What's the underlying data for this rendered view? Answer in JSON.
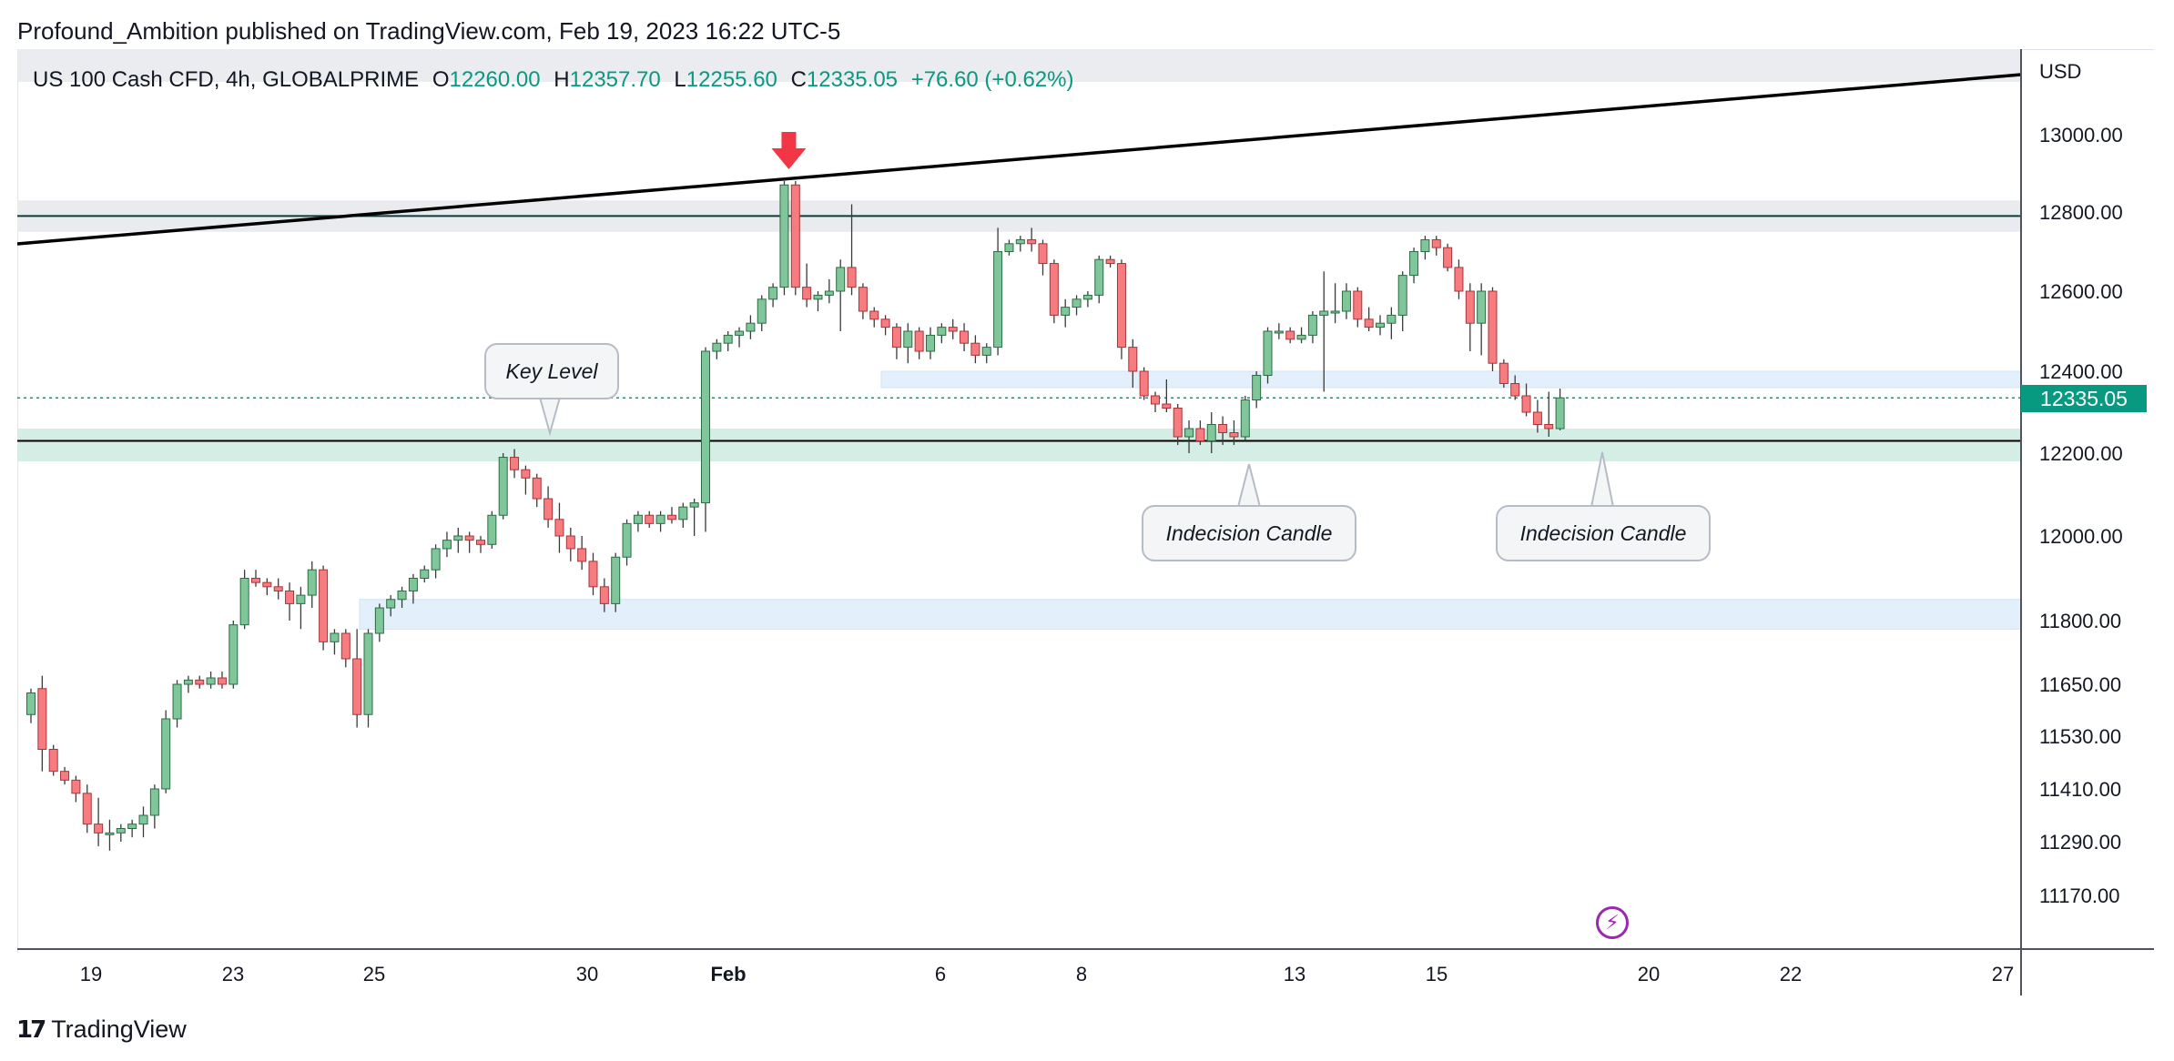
{
  "header": {
    "published_line": "Profound_Ambition published on TradingView.com, Feb 19, 2023 16:22 UTC-5"
  },
  "legend": {
    "symbol": "US 100 Cash CFD, 4h, GLOBALPRIME",
    "open_label": "O",
    "open": "12260.00",
    "high_label": "H",
    "high": "12357.70",
    "low_label": "L",
    "low": "12255.60",
    "close_label": "C",
    "close": "12335.05",
    "change": "+76.60 (+0.62%)"
  },
  "axis": {
    "currency": "USD",
    "last_price": "12335.05"
  },
  "annotations": {
    "key_level": "Key Level",
    "indecision_1": "Indecision Candle",
    "indecision_2": "Indecision Candle"
  },
  "footer": {
    "brand": "TradingView"
  },
  "colors": {
    "up": "#089981",
    "down": "#f23645",
    "up_fill": "#7fc79a",
    "down_fill": "#f77c80",
    "zone_green": "#d4eee6",
    "zone_blue": "#e3f0fb",
    "zone_gray": "#e9ebef",
    "marker": "#f23645"
  },
  "chart_data": {
    "type": "candlestick",
    "timeframe": "4h",
    "currency": "USD",
    "y_ticks": [
      13000,
      12800,
      12600,
      12400,
      12200,
      12000,
      11800,
      11650,
      11530,
      11410,
      11290,
      11170
    ],
    "x_ticks": [
      "19",
      "23",
      "25",
      "30",
      "Feb",
      "6",
      "8",
      "13",
      "15",
      "20",
      "22",
      "27"
    ],
    "last_price": 12335.05,
    "ohlc": {
      "open": 12260.0,
      "high": 12357.7,
      "low": 12255.6,
      "close": 12335.05,
      "change": 76.6,
      "change_pct": 0.62
    },
    "candles": [
      [
        11580,
        11640,
        11560,
        11630
      ],
      [
        11640,
        11670,
        11450,
        11500
      ],
      [
        11500,
        11510,
        11440,
        11450
      ],
      [
        11450,
        11460,
        11420,
        11430
      ],
      [
        11430,
        11440,
        11380,
        11400
      ],
      [
        11400,
        11420,
        11310,
        11330
      ],
      [
        11330,
        11390,
        11280,
        11310
      ],
      [
        11310,
        11340,
        11270,
        11310
      ],
      [
        11310,
        11330,
        11290,
        11320
      ],
      [
        11320,
        11340,
        11300,
        11330
      ],
      [
        11330,
        11370,
        11300,
        11350
      ],
      [
        11350,
        11420,
        11320,
        11410
      ],
      [
        11410,
        11590,
        11400,
        11570
      ],
      [
        11570,
        11660,
        11550,
        11650
      ],
      [
        11650,
        11670,
        11630,
        11660
      ],
      [
        11660,
        11670,
        11640,
        11650
      ],
      [
        11650,
        11680,
        11640,
        11665
      ],
      [
        11665,
        11680,
        11640,
        11650
      ],
      [
        11650,
        11800,
        11640,
        11790
      ],
      [
        11790,
        11920,
        11780,
        11900
      ],
      [
        11900,
        11920,
        11880,
        11890
      ],
      [
        11890,
        11900,
        11860,
        11880
      ],
      [
        11880,
        11900,
        11850,
        11870
      ],
      [
        11870,
        11890,
        11800,
        11840
      ],
      [
        11840,
        11880,
        11780,
        11860
      ],
      [
        11860,
        11940,
        11830,
        11920
      ],
      [
        11920,
        11930,
        11730,
        11750
      ],
      [
        11750,
        11780,
        11720,
        11770
      ],
      [
        11770,
        11780,
        11690,
        11710
      ],
      [
        11710,
        11780,
        11550,
        11580
      ],
      [
        11580,
        11780,
        11550,
        11770
      ],
      [
        11770,
        11840,
        11750,
        11830
      ],
      [
        11830,
        11860,
        11810,
        11850
      ],
      [
        11850,
        11880,
        11830,
        11870
      ],
      [
        11870,
        11910,
        11840,
        11900
      ],
      [
        11900,
        11930,
        11890,
        11920
      ],
      [
        11920,
        11980,
        11900,
        11970
      ],
      [
        11970,
        12010,
        11950,
        11990
      ],
      [
        11990,
        12020,
        11960,
        12000
      ],
      [
        12000,
        12010,
        11960,
        11990
      ],
      [
        11990,
        12000,
        11960,
        11980
      ],
      [
        11980,
        12060,
        11970,
        12050
      ],
      [
        12050,
        12200,
        12040,
        12190
      ],
      [
        12190,
        12210,
        12140,
        12160
      ],
      [
        12160,
        12170,
        12100,
        12140
      ],
      [
        12140,
        12150,
        12070,
        12090
      ],
      [
        12090,
        12120,
        12020,
        12040
      ],
      [
        12040,
        12080,
        11960,
        12000
      ],
      [
        12000,
        12020,
        11940,
        11970
      ],
      [
        11970,
        12000,
        11920,
        11940
      ],
      [
        11940,
        11960,
        11860,
        11880
      ],
      [
        11880,
        11900,
        11820,
        11840
      ],
      [
        11840,
        11960,
        11820,
        11950
      ],
      [
        11950,
        12040,
        11930,
        12030
      ],
      [
        12030,
        12060,
        12010,
        12050
      ],
      [
        12050,
        12060,
        12020,
        12030
      ],
      [
        12030,
        12060,
        12010,
        12050
      ],
      [
        12050,
        12070,
        12030,
        12040
      ],
      [
        12040,
        12080,
        12020,
        12070
      ],
      [
        12070,
        12090,
        12000,
        12080
      ],
      [
        12080,
        12460,
        12010,
        12450
      ],
      [
        12450,
        12480,
        12430,
        12470
      ],
      [
        12470,
        12500,
        12450,
        12490
      ],
      [
        12490,
        12510,
        12460,
        12500
      ],
      [
        12500,
        12540,
        12480,
        12520
      ],
      [
        12520,
        12590,
        12500,
        12580
      ],
      [
        12580,
        12620,
        12560,
        12610
      ],
      [
        12610,
        12880,
        12590,
        12870
      ],
      [
        12870,
        12880,
        12590,
        12610
      ],
      [
        12610,
        12670,
        12560,
        12580
      ],
      [
        12580,
        12600,
        12550,
        12590
      ],
      [
        12590,
        12630,
        12570,
        12600
      ],
      [
        12600,
        12680,
        12500,
        12660
      ],
      [
        12660,
        12820,
        12590,
        12610
      ],
      [
        12610,
        12620,
        12530,
        12550
      ],
      [
        12550,
        12560,
        12510,
        12530
      ],
      [
        12530,
        12540,
        12490,
        12510
      ],
      [
        12510,
        12520,
        12430,
        12460
      ],
      [
        12460,
        12520,
        12420,
        12500
      ],
      [
        12500,
        12510,
        12430,
        12450
      ],
      [
        12450,
        12510,
        12430,
        12490
      ],
      [
        12490,
        12520,
        12470,
        12510
      ],
      [
        12510,
        12530,
        12480,
        12500
      ],
      [
        12500,
        12520,
        12450,
        12470
      ],
      [
        12470,
        12490,
        12420,
        12440
      ],
      [
        12440,
        12470,
        12420,
        12460
      ],
      [
        12460,
        12760,
        12440,
        12700
      ],
      [
        12700,
        12730,
        12690,
        12720
      ],
      [
        12720,
        12740,
        12700,
        12730
      ],
      [
        12730,
        12760,
        12700,
        12720
      ],
      [
        12720,
        12730,
        12640,
        12670
      ],
      [
        12670,
        12680,
        12520,
        12540
      ],
      [
        12540,
        12580,
        12510,
        12560
      ],
      [
        12560,
        12590,
        12540,
        12580
      ],
      [
        12580,
        12600,
        12560,
        12590
      ],
      [
        12590,
        12690,
        12570,
        12680
      ],
      [
        12680,
        12690,
        12660,
        12670
      ],
      [
        12670,
        12680,
        12430,
        12460
      ],
      [
        12460,
        12480,
        12360,
        12400
      ],
      [
        12400,
        12410,
        12330,
        12340
      ],
      [
        12340,
        12350,
        12300,
        12320
      ],
      [
        12320,
        12380,
        12300,
        12310
      ],
      [
        12310,
        12320,
        12220,
        12240
      ],
      [
        12240,
        12280,
        12200,
        12260
      ],
      [
        12260,
        12280,
        12220,
        12230
      ],
      [
        12230,
        12300,
        12200,
        12270
      ],
      [
        12270,
        12290,
        12220,
        12250
      ],
      [
        12250,
        12280,
        12220,
        12240
      ],
      [
        12240,
        12340,
        12230,
        12330
      ],
      [
        12330,
        12400,
        12310,
        12390
      ],
      [
        12390,
        12510,
        12370,
        12500
      ],
      [
        12500,
        12520,
        12480,
        12500
      ],
      [
        12500,
        12510,
        12470,
        12480
      ],
      [
        12480,
        12510,
        12470,
        12490
      ],
      [
        12490,
        12550,
        12470,
        12540
      ],
      [
        12540,
        12650,
        12350,
        12550
      ],
      [
        12550,
        12620,
        12520,
        12550
      ],
      [
        12550,
        12620,
        12530,
        12600
      ],
      [
        12600,
        12610,
        12510,
        12530
      ],
      [
        12530,
        12560,
        12500,
        12510
      ],
      [
        12510,
        12540,
        12490,
        12520
      ],
      [
        12520,
        12560,
        12480,
        12540
      ],
      [
        12540,
        12650,
        12500,
        12640
      ],
      [
        12640,
        12710,
        12620,
        12700
      ],
      [
        12700,
        12740,
        12680,
        12730
      ],
      [
        12730,
        12740,
        12690,
        12710
      ],
      [
        12710,
        12720,
        12650,
        12660
      ],
      [
        12660,
        12680,
        12580,
        12600
      ],
      [
        12600,
        12620,
        12450,
        12520
      ],
      [
        12520,
        12620,
        12440,
        12600
      ],
      [
        12600,
        12610,
        12400,
        12420
      ],
      [
        12420,
        12430,
        12360,
        12370
      ],
      [
        12370,
        12390,
        12330,
        12340
      ],
      [
        12340,
        12370,
        12290,
        12300
      ],
      [
        12300,
        12330,
        12250,
        12270
      ],
      [
        12270,
        12350,
        12240,
        12260
      ],
      [
        12260,
        12357.7,
        12255.6,
        12335.05
      ]
    ],
    "levels": [
      {
        "type": "horizontal_line",
        "value": 12790
      },
      {
        "type": "horizontal_line",
        "value": 12230
      },
      {
        "type": "trendline",
        "from": [
          0,
          12710
        ],
        "to": [
          150,
          13070
        ]
      },
      {
        "type": "zone",
        "from": 12750,
        "to": 12830
      },
      {
        "type": "zone",
        "from": 12180,
        "to": 12260
      },
      {
        "type": "zone",
        "from": 12360,
        "to": 12400
      },
      {
        "type": "zone",
        "from": 11780,
        "to": 11850
      }
    ]
  }
}
